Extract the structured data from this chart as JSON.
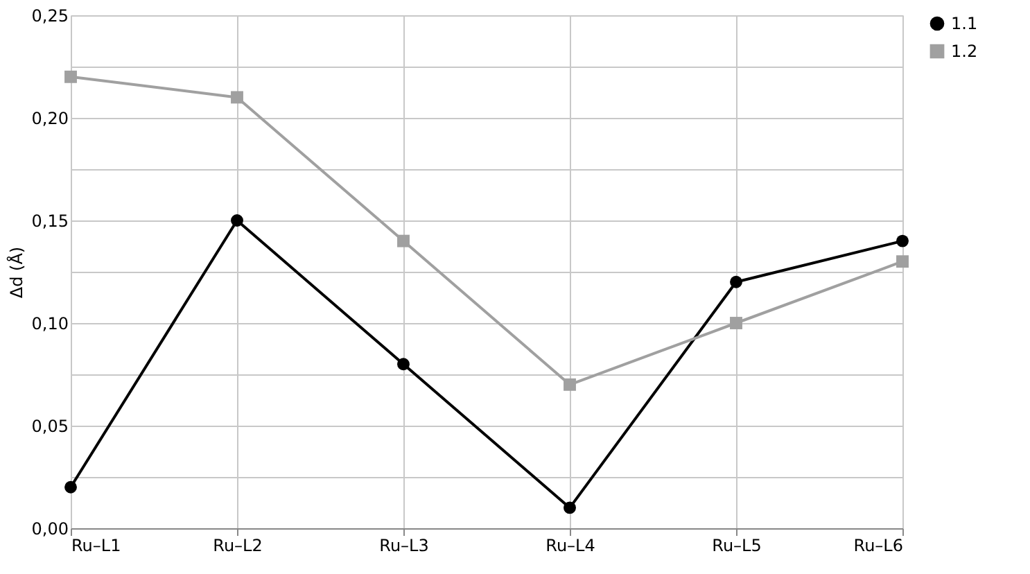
{
  "chart_data": {
    "type": "line",
    "ylabel": "Δd (Å)",
    "categories": [
      "Ru–L1",
      "Ru–L2",
      "Ru–L3",
      "Ru–L4",
      "Ru–L5",
      "Ru–L6"
    ],
    "series": [
      {
        "name": "1.1",
        "color": "#000000",
        "marker": "circle",
        "values": [
          0.02,
          0.15,
          0.08,
          0.01,
          0.12,
          0.14
        ]
      },
      {
        "name": "1.2",
        "color": "#a0a0a0",
        "marker": "square",
        "values": [
          0.22,
          0.21,
          0.14,
          0.07,
          0.1,
          0.13
        ]
      }
    ],
    "ylim": [
      0,
      0.25
    ],
    "yticks": [
      {
        "value": 0,
        "label": "0,00"
      },
      {
        "value": 0.025,
        "label": null
      },
      {
        "value": 0.05,
        "label": "0,05"
      },
      {
        "value": 0.075,
        "label": null
      },
      {
        "value": 0.1,
        "label": "0,10"
      },
      {
        "value": 0.125,
        "label": null
      },
      {
        "value": 0.15,
        "label": "0,15"
      },
      {
        "value": 0.175,
        "label": null
      },
      {
        "value": 0.2,
        "label": "0,20"
      },
      {
        "value": 0.225,
        "label": null
      },
      {
        "value": 0.25,
        "label": "0,25"
      }
    ],
    "grid": true,
    "legend": "right",
    "line_style": "solid"
  }
}
